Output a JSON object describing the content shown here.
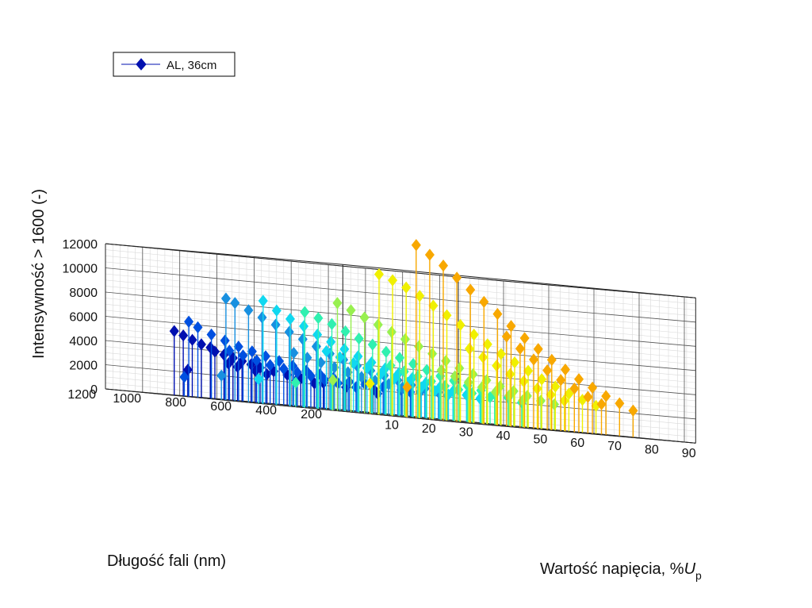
{
  "chart_data": {
    "type": "scatter",
    "subtype": "3d-stem",
    "xlabel": "Wartość napięcia, %",
    "xlabel_symbol": "U",
    "xlabel_subscript": "p",
    "ylabel": "Długość fali (nm)",
    "zlabel": "Intensywność > 1600 (-)",
    "xlim": [
      0,
      95
    ],
    "ylim": [
      150,
      1200
    ],
    "zlim": [
      0,
      12000
    ],
    "xticks": [
      "10",
      "20",
      "30",
      "40",
      "50",
      "60",
      "70",
      "80",
      "90"
    ],
    "yticks": [
      "200",
      "400",
      "600",
      "800",
      "1000",
      "1200"
    ],
    "zticks": [
      "0",
      "2000",
      "4000",
      "6000",
      "8000",
      "10000",
      "12000"
    ],
    "grid": true,
    "legend": {
      "label": "AL, 36cm",
      "position": "top-left"
    },
    "marker": "diamond",
    "colormap": [
      "#0010b0",
      "#0050e0",
      "#1890e0",
      "#10d8f0",
      "#30f0b0",
      "#98f050",
      "#f0f000",
      "#f8a800"
    ],
    "series": [
      {
        "level": 10,
        "color": "#0010b0",
        "points": [
          [
            10,
            180,
            2000
          ],
          [
            10,
            160,
            1600
          ],
          [
            10,
            1000,
            2200
          ],
          [
            10,
            300,
            1900
          ],
          [
            10,
            400,
            2100
          ],
          [
            10,
            500,
            2300
          ],
          [
            10,
            560,
            2500
          ],
          [
            10,
            620,
            2700
          ],
          [
            10,
            680,
            2900
          ],
          [
            10,
            720,
            3100
          ],
          [
            10,
            760,
            3300
          ],
          [
            10,
            800,
            3500
          ],
          [
            10,
            840,
            3700
          ],
          [
            10,
            880,
            3900
          ],
          [
            10,
            440,
            2000
          ],
          [
            10,
            520,
            2100
          ],
          [
            10,
            650,
            2400
          ],
          [
            10,
            700,
            2600
          ],
          [
            10,
            780,
            2800
          ],
          [
            10,
            820,
            3000
          ],
          [
            10,
            900,
            4200
          ],
          [
            10,
            940,
            4400
          ],
          [
            10,
            980,
            4700
          ],
          [
            10,
            1020,
            5000
          ],
          [
            10,
            1060,
            5300
          ]
        ]
      },
      {
        "level": 20,
        "color": "#0050e0",
        "points": [
          [
            20,
            1180,
            1600
          ],
          [
            20,
            180,
            2000
          ],
          [
            20,
            220,
            2100
          ],
          [
            20,
            300,
            2200
          ],
          [
            20,
            380,
            2300
          ],
          [
            20,
            450,
            2400
          ],
          [
            20,
            520,
            2600
          ],
          [
            20,
            580,
            2800
          ],
          [
            20,
            640,
            3000
          ],
          [
            20,
            700,
            3300
          ],
          [
            20,
            760,
            3600
          ],
          [
            20,
            820,
            3900
          ],
          [
            20,
            880,
            4200
          ],
          [
            20,
            940,
            4500
          ],
          [
            20,
            1000,
            4900
          ],
          [
            20,
            1060,
            5300
          ],
          [
            20,
            1120,
            5800
          ],
          [
            20,
            1160,
            6200
          ],
          [
            20,
            420,
            2000
          ],
          [
            20,
            500,
            2200
          ],
          [
            20,
            560,
            2400
          ],
          [
            20,
            620,
            2600
          ],
          [
            20,
            680,
            2800
          ],
          [
            20,
            740,
            3000
          ],
          [
            20,
            800,
            3200
          ],
          [
            20,
            860,
            3500
          ],
          [
            20,
            920,
            3800
          ],
          [
            20,
            980,
            4100
          ]
        ]
      },
      {
        "level": 30,
        "color": "#1890e0",
        "points": [
          [
            30,
            1180,
            2000
          ],
          [
            30,
            180,
            2000
          ],
          [
            30,
            220,
            2200
          ],
          [
            30,
            280,
            2400
          ],
          [
            30,
            340,
            2600
          ],
          [
            30,
            400,
            2900
          ],
          [
            30,
            460,
            3200
          ],
          [
            30,
            520,
            3500
          ],
          [
            30,
            580,
            3800
          ],
          [
            30,
            640,
            4200
          ],
          [
            30,
            700,
            4600
          ],
          [
            30,
            760,
            5100
          ],
          [
            30,
            820,
            5600
          ],
          [
            30,
            880,
            6100
          ],
          [
            30,
            940,
            6600
          ],
          [
            30,
            1000,
            7100
          ],
          [
            30,
            1060,
            7600
          ],
          [
            30,
            1120,
            8100
          ],
          [
            30,
            1160,
            8400
          ],
          [
            30,
            300,
            2100
          ],
          [
            30,
            380,
            2300
          ],
          [
            30,
            440,
            2500
          ],
          [
            30,
            500,
            2700
          ],
          [
            30,
            560,
            2900
          ],
          [
            30,
            620,
            3200
          ],
          [
            30,
            680,
            3500
          ],
          [
            30,
            740,
            3800
          ],
          [
            30,
            800,
            4100
          ],
          [
            30,
            860,
            4400
          ]
        ]
      },
      {
        "level": 40,
        "color": "#10d8f0",
        "points": [
          [
            40,
            1180,
            2000
          ],
          [
            40,
            200,
            2000
          ],
          [
            40,
            260,
            2200
          ],
          [
            40,
            320,
            2400
          ],
          [
            40,
            380,
            2600
          ],
          [
            40,
            440,
            2900
          ],
          [
            40,
            500,
            3200
          ],
          [
            40,
            560,
            3500
          ],
          [
            40,
            620,
            3800
          ],
          [
            40,
            680,
            4200
          ],
          [
            40,
            740,
            4600
          ],
          [
            40,
            800,
            5100
          ],
          [
            40,
            860,
            5600
          ],
          [
            40,
            920,
            6100
          ],
          [
            40,
            980,
            6700
          ],
          [
            40,
            1040,
            7200
          ],
          [
            40,
            1100,
            7800
          ],
          [
            40,
            1160,
            8500
          ],
          [
            40,
            340,
            2100
          ],
          [
            40,
            400,
            2300
          ],
          [
            40,
            460,
            2500
          ],
          [
            40,
            520,
            2800
          ],
          [
            40,
            580,
            3000
          ],
          [
            40,
            640,
            3300
          ],
          [
            40,
            700,
            3700
          ],
          [
            40,
            760,
            4000
          ],
          [
            40,
            820,
            4400
          ],
          [
            40,
            880,
            4800
          ]
        ]
      },
      {
        "level": 50,
        "color": "#30f0b0",
        "points": [
          [
            50,
            1180,
            2000
          ],
          [
            50,
            180,
            2000
          ],
          [
            50,
            240,
            2300
          ],
          [
            50,
            300,
            2500
          ],
          [
            50,
            360,
            2700
          ],
          [
            50,
            420,
            3000
          ],
          [
            50,
            480,
            3300
          ],
          [
            50,
            540,
            3600
          ],
          [
            50,
            600,
            4000
          ],
          [
            50,
            660,
            4400
          ],
          [
            50,
            720,
            4800
          ],
          [
            50,
            780,
            5200
          ],
          [
            50,
            840,
            5700
          ],
          [
            50,
            900,
            6100
          ],
          [
            50,
            960,
            6600
          ],
          [
            50,
            1020,
            7100
          ],
          [
            50,
            1080,
            7500
          ],
          [
            50,
            1140,
            7900
          ],
          [
            50,
            320,
            2200
          ],
          [
            50,
            400,
            2400
          ],
          [
            50,
            460,
            2600
          ],
          [
            50,
            520,
            2800
          ],
          [
            50,
            580,
            3100
          ],
          [
            50,
            640,
            3400
          ],
          [
            50,
            700,
            3700
          ],
          [
            50,
            760,
            4100
          ]
        ]
      },
      {
        "level": 60,
        "color": "#98f050",
        "points": [
          [
            60,
            1180,
            2500
          ],
          [
            60,
            200,
            2100
          ],
          [
            60,
            260,
            2300
          ],
          [
            60,
            320,
            2600
          ],
          [
            60,
            380,
            2900
          ],
          [
            60,
            440,
            3200
          ],
          [
            60,
            500,
            3600
          ],
          [
            60,
            560,
            4000
          ],
          [
            60,
            620,
            4400
          ],
          [
            60,
            680,
            4900
          ],
          [
            60,
            740,
            5400
          ],
          [
            60,
            800,
            5900
          ],
          [
            60,
            860,
            6400
          ],
          [
            60,
            920,
            6900
          ],
          [
            60,
            980,
            7400
          ],
          [
            60,
            1040,
            7900
          ],
          [
            60,
            1100,
            8400
          ],
          [
            60,
            1160,
            8900
          ],
          [
            60,
            340,
            2200
          ],
          [
            60,
            400,
            2500
          ],
          [
            60,
            460,
            2700
          ],
          [
            60,
            520,
            3000
          ],
          [
            60,
            580,
            3300
          ],
          [
            60,
            640,
            3700
          ],
          [
            60,
            700,
            4100
          ]
        ]
      },
      {
        "level": 70,
        "color": "#f0f000",
        "points": [
          [
            70,
            1180,
            2500
          ],
          [
            70,
            180,
            2300
          ],
          [
            70,
            240,
            2700
          ],
          [
            70,
            300,
            3100
          ],
          [
            70,
            360,
            3600
          ],
          [
            70,
            420,
            4100
          ],
          [
            70,
            480,
            4700
          ],
          [
            70,
            540,
            5300
          ],
          [
            70,
            600,
            5900
          ],
          [
            70,
            660,
            6600
          ],
          [
            70,
            720,
            7300
          ],
          [
            70,
            780,
            8000
          ],
          [
            70,
            840,
            8700
          ],
          [
            70,
            900,
            9400
          ],
          [
            70,
            960,
            10100
          ],
          [
            70,
            1020,
            10700
          ],
          [
            70,
            1080,
            11200
          ],
          [
            70,
            1140,
            11600
          ],
          [
            70,
            320,
            2500
          ],
          [
            70,
            380,
            2900
          ],
          [
            70,
            440,
            3300
          ],
          [
            70,
            500,
            3800
          ],
          [
            70,
            560,
            4300
          ],
          [
            70,
            620,
            4900
          ],
          [
            70,
            680,
            5500
          ],
          [
            70,
            740,
            6100
          ]
        ]
      },
      {
        "level": 80,
        "color": "#f8a800",
        "points": [
          [
            80,
            1180,
            2500
          ],
          [
            80,
            180,
            2200
          ],
          [
            80,
            240,
            2700
          ],
          [
            80,
            300,
            3200
          ],
          [
            80,
            360,
            3800
          ],
          [
            80,
            420,
            4400
          ],
          [
            80,
            480,
            5100
          ],
          [
            80,
            540,
            5800
          ],
          [
            80,
            600,
            6600
          ],
          [
            80,
            660,
            7400
          ],
          [
            80,
            720,
            8300
          ],
          [
            80,
            780,
            9200
          ],
          [
            80,
            840,
            10100
          ],
          [
            80,
            900,
            11000
          ],
          [
            80,
            960,
            11900
          ],
          [
            80,
            1020,
            12800
          ],
          [
            80,
            1080,
            13600
          ],
          [
            80,
            1140,
            14300
          ],
          [
            80,
            320,
            2500
          ],
          [
            80,
            380,
            3000
          ],
          [
            80,
            440,
            3600
          ],
          [
            80,
            500,
            4200
          ],
          [
            80,
            560,
            4900
          ],
          [
            80,
            620,
            5700
          ],
          [
            80,
            680,
            6500
          ],
          [
            80,
            740,
            7400
          ]
        ]
      }
    ]
  }
}
